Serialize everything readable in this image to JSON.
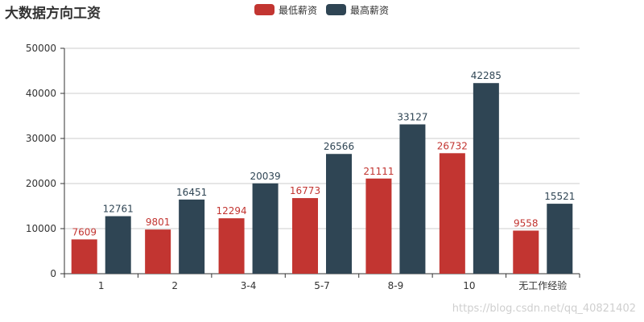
{
  "chart_data": {
    "type": "bar",
    "title": "大数据方向工资",
    "categories": [
      "1",
      "2",
      "3-4",
      "5-7",
      "8-9",
      "10",
      "无工作经验"
    ],
    "series": [
      {
        "name": "最低薪资",
        "color": "#c23531",
        "values": [
          7609,
          9801,
          12294,
          16773,
          21111,
          26732,
          9558
        ]
      },
      {
        "name": "最高薪资",
        "color": "#2f4554",
        "values": [
          12761,
          16451,
          20039,
          26566,
          33127,
          42285,
          15521
        ]
      }
    ],
    "ylim": [
      0,
      50000
    ],
    "yticks": [
      0,
      10000,
      20000,
      30000,
      40000,
      50000
    ],
    "grid": true,
    "legend_position": "top-center",
    "data_labels": true
  },
  "watermark": "https://blog.csdn.net/qq_40821402"
}
